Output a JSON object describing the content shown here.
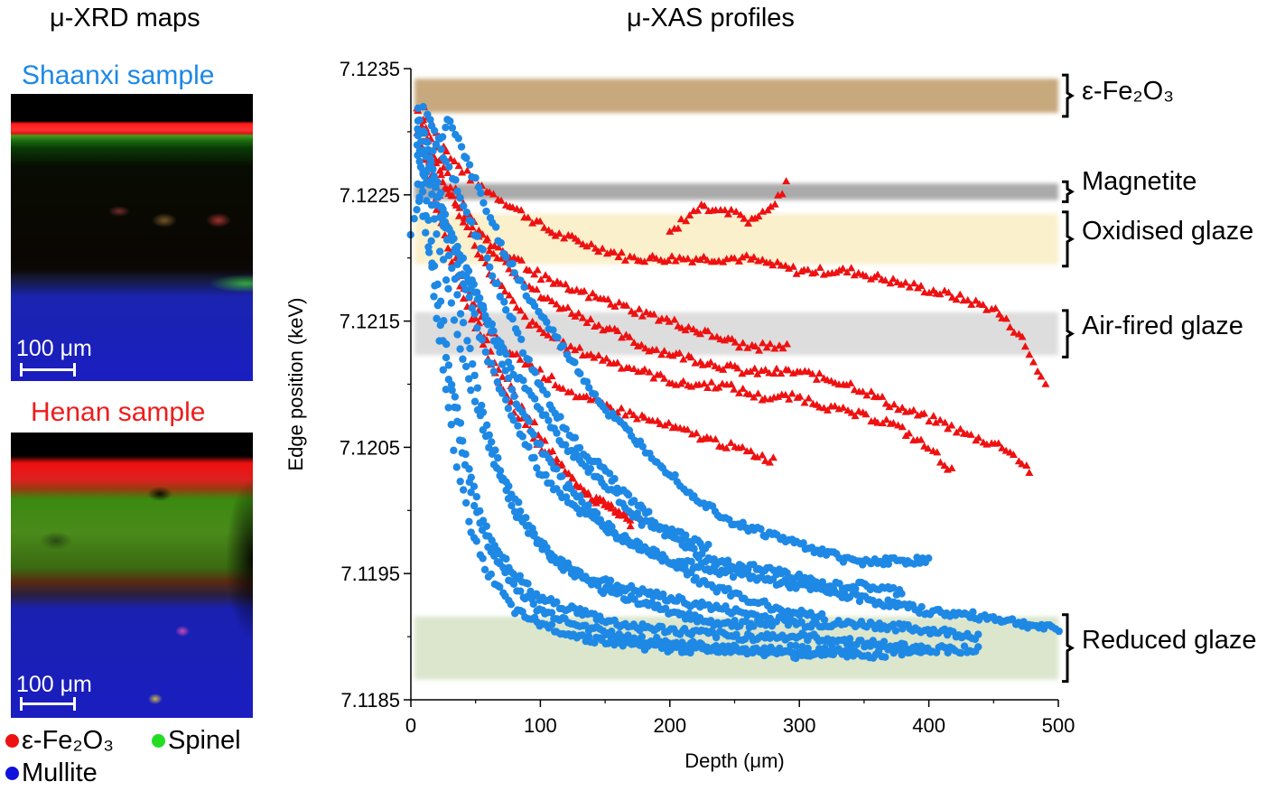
{
  "left_panel": {
    "heading": "μ-XRD maps",
    "sample1": {
      "title": "Shaanxi sample",
      "title_color": "#1e88e5",
      "scalebar": "100 μm"
    },
    "sample2": {
      "title": "Henan sample",
      "title_color": "#ee1c1c",
      "scalebar": "100 μm"
    },
    "legend": [
      {
        "label": "ε-Fe₂O₃",
        "color": "#ee1111"
      },
      {
        "label": "Spinel",
        "color": "#22dd22"
      },
      {
        "label": "Mullite",
        "color": "#1111dd"
      }
    ]
  },
  "chart_data": {
    "type": "scatter",
    "title": "μ-XAS profiles",
    "xlabel": "Depth (μm)",
    "ylabel": "Edge position (keV)",
    "xlim": [
      0,
      500
    ],
    "ylim": [
      7.1185,
      7.1235
    ],
    "x_ticks": [
      "0",
      "100",
      "200",
      "300",
      "400",
      "500"
    ],
    "y_ticks": [
      "7.1185",
      "7.1195",
      "7.1205",
      "7.1215",
      "7.1225",
      "7.1235"
    ],
    "bands": [
      {
        "label": "ε-Fe₂O₃",
        "y_low": 7.12315,
        "y_high": 7.12342,
        "color": "#c8a97e"
      },
      {
        "label": "Magnetite",
        "y_low": 7.12246,
        "y_high": 7.12259,
        "color": "#aaaaaa"
      },
      {
        "label": "Oxidised glaze",
        "y_low": 7.12195,
        "y_high": 7.12235,
        "color": "#fbf0cc"
      },
      {
        "label": "Air-fired glaze",
        "y_low": 7.12123,
        "y_high": 7.12157,
        "color": "#dddddd"
      },
      {
        "label": "Reduced glaze",
        "y_low": 7.11866,
        "y_high": 7.11916,
        "color": "#dbe6cc"
      }
    ],
    "series": [
      {
        "name": "Henan sample",
        "marker": "triangle",
        "color": "#ee1111",
        "profiles": [
          {
            "x": [
              10,
              30,
              50,
              80,
              110,
              140,
              170,
              200,
              230,
              260,
              300,
              340,
              380,
              420,
              450,
              470,
              480,
              490
            ],
            "y": [
              7.1232,
              7.1228,
              7.1226,
              7.1224,
              7.1222,
              7.1221,
              7.122,
              7.122,
              7.122,
              7.122,
              7.1219,
              7.1219,
              7.1218,
              7.1217,
              7.1216,
              7.1214,
              7.1212,
              7.121
            ]
          },
          {
            "x": [
              10,
              30,
              60,
              100,
              140,
              180,
              220,
              260,
              300,
              340,
              380,
              410,
              430,
              460,
              480
            ],
            "y": [
              7.1231,
              7.1226,
              7.1221,
              7.1217,
              7.1215,
              7.1213,
              7.1212,
              7.1211,
              7.1211,
              7.121,
              7.1208,
              7.1207,
              7.1206,
              7.1205,
              7.1203
            ]
          },
          {
            "x": [
              10,
              30,
              60,
              90,
              120,
              150,
              180,
              210,
              240,
              270,
              300,
              330,
              370,
              400,
              420
            ],
            "y": [
              7.123,
              7.1225,
              7.1219,
              7.1215,
              7.1213,
              7.1212,
              7.1211,
              7.121,
              7.121,
              7.1209,
              7.1209,
              7.1208,
              7.1207,
              7.1205,
              7.1203
            ]
          },
          {
            "x": [
              10,
              30,
              50,
              70,
              100,
              130,
              160,
              190,
              220,
              250,
              280
            ],
            "y": [
              7.1229,
              7.1222,
              7.1216,
              7.1213,
              7.1211,
              7.1209,
              7.1208,
              7.1207,
              7.1206,
              7.1205,
              7.1204
            ]
          },
          {
            "x": [
              5,
              20,
              40,
              60,
              80,
              100,
              120,
              140,
              160,
              180
            ],
            "y": [
              7.1232,
              7.1225,
              7.1218,
              7.1213,
              7.1209,
              7.1206,
              7.1203,
              7.1201,
              7.12,
              7.1199
            ]
          },
          {
            "x": [
              5,
              20,
              40,
              60,
              80,
              100,
              120,
              140,
              160,
              170
            ],
            "y": [
              7.123,
              7.1224,
              7.1217,
              7.1212,
              7.1208,
              7.1205,
              7.1203,
              7.1201,
              7.12,
              7.1199
            ]
          },
          {
            "x": [
              5,
              25,
              50,
              80,
              110,
              140,
              170,
              200,
              230,
              260,
              290
            ],
            "y": [
              7.1232,
              7.1226,
              7.1222,
              7.122,
              7.1218,
              7.1217,
              7.1216,
              7.1215,
              7.1214,
              7.1213,
              7.1213
            ]
          },
          {
            "x": [
              200,
              210,
              220,
              240,
              260,
              280,
              290
            ],
            "y": [
              7.1222,
              7.1223,
              7.1224,
              7.1224,
              7.1223,
              7.1224,
              7.1226
            ]
          }
        ]
      },
      {
        "name": "Shaanxi sample",
        "marker": "circle",
        "color": "#1e88e5",
        "profiles": [
          {
            "x": [
              5,
              20,
              40,
              60,
              80,
              100,
              130,
              160,
              200,
              250,
              300,
              350,
              400,
              450,
              500
            ],
            "y": [
              7.1232,
              7.1226,
              7.1218,
              7.1212,
              7.1207,
              7.1203,
              7.12,
              7.1198,
              7.1196,
              7.1195,
              7.1194,
              7.1193,
              7.1192,
              7.11915,
              7.11905
            ]
          },
          {
            "x": [
              5,
              20,
              40,
              60,
              80,
              100,
              130,
              160,
              200,
              250,
              300,
              350,
              400,
              440
            ],
            "y": [
              7.1231,
              7.1222,
              7.1212,
              7.1205,
              7.12,
              7.1197,
              7.1195,
              7.1194,
              7.1193,
              7.1192,
              7.1191,
              7.1191,
              7.11905,
              7.119
            ]
          },
          {
            "x": [
              5,
              15,
              30,
              45,
              60,
              80,
              100,
              130,
              160,
              200,
              250,
              300,
              350,
              400,
              440
            ],
            "y": [
              7.123,
              7.1222,
              7.1211,
              7.1203,
              7.1198,
              7.1195,
              7.1193,
              7.1192,
              7.1191,
              7.11905,
              7.119,
              7.119,
              7.11895,
              7.1189,
              7.1189
            ]
          },
          {
            "x": [
              5,
              15,
              25,
              35,
              45,
              60,
              80,
              100,
              130,
              160,
              200,
              250,
              300,
              350,
              400
            ],
            "y": [
              7.1229,
              7.122,
              7.1211,
              7.1204,
              7.1199,
              7.1195,
              7.1192,
              7.1191,
              7.119,
              7.11895,
              7.1189,
              7.1189,
              7.1189,
              7.11885,
              7.1189
            ]
          },
          {
            "x": [
              5,
              20,
              40,
              60,
              80,
              100,
              120,
              140,
              160,
              180,
              200,
              230,
              260,
              290,
              320,
              350,
              380
            ],
            "y": [
              7.123,
              7.1225,
              7.1219,
              7.1215,
              7.1211,
              7.1208,
              7.1205,
              7.1203,
              7.1201,
              7.1199,
              7.1198,
              7.1196,
              7.11955,
              7.1195,
              7.1194,
              7.1194,
              7.11935
            ]
          },
          {
            "x": [
              30,
              50,
              70,
              90,
              110,
              130,
              150,
              170,
              190,
              220,
              250,
              280,
              310,
              340,
              370,
              400
            ],
            "y": [
              7.1231,
              7.1226,
              7.1221,
              7.1217,
              7.1214,
              7.1211,
              7.1208,
              7.1206,
              7.1204,
              7.1201,
              7.1199,
              7.1198,
              7.1197,
              7.1196,
              7.1196,
              7.1196
            ]
          },
          {
            "x": [
              5,
              20,
              40,
              60,
              80,
              100,
              120,
              140,
              160,
              180,
              200,
              230,
              260,
              290,
              320
            ],
            "y": [
              7.1228,
              7.1224,
              7.122,
              7.1215,
              7.1209,
              7.1205,
              7.1202,
              7.12,
              7.1198,
              7.1197,
              7.1196,
              7.1194,
              7.1193,
              7.1192,
              7.11915
            ]
          },
          {
            "x": [
              5,
              15,
              30,
              45,
              60,
              80,
              100,
              130,
              160,
              200,
              250,
              300,
              340
            ],
            "y": [
              7.1226,
              7.122,
              7.121,
              7.1202,
              7.1197,
              7.1194,
              7.1192,
              7.1191,
              7.119,
              7.11895,
              7.1189,
              7.11885,
              7.1189
            ]
          },
          {
            "x": [
              10,
              25,
              40,
              55,
              70,
              90,
              110,
              140,
              170,
              200,
              240,
              280
            ],
            "y": [
              7.123,
              7.1223,
              7.1215,
              7.1208,
              7.1203,
              7.1199,
              7.1196,
              7.1194,
              7.1193,
              7.1192,
              7.1191,
              7.1191
            ]
          },
          {
            "x": [
              10,
              30,
              50,
              70,
              90,
              110,
              130,
              150,
              170,
              190,
              210,
              230
            ],
            "y": [
              7.1232,
              7.1227,
              7.1222,
              7.1217,
              7.1212,
              7.1208,
              7.1205,
              7.1203,
              7.1201,
              7.1199,
              7.1198,
              7.1197
            ]
          },
          {
            "x": [
              0,
              10,
              20,
              30
            ],
            "y": [
              7.1222,
              7.1226,
              7.1229,
              7.1231
            ]
          }
        ]
      }
    ],
    "band_labels": [
      "ε-Fe₂O₃",
      "Magnetite",
      "Oxidised glaze",
      "Air-fired glaze",
      "Reduced glaze"
    ]
  }
}
